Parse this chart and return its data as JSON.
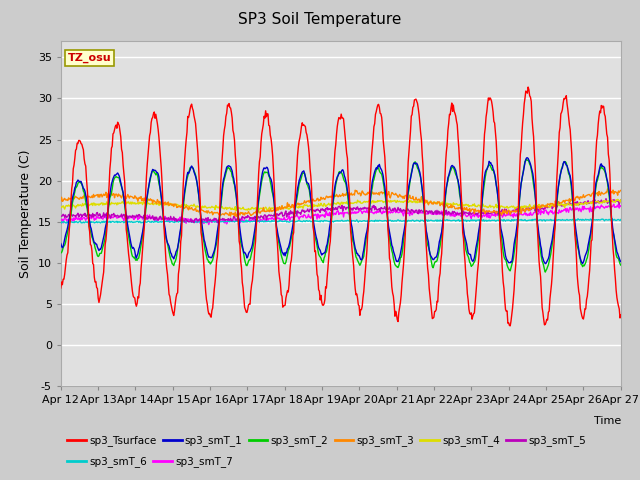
{
  "title": "SP3 Soil Temperature",
  "ylabel": "Soil Temperature (C)",
  "xlabel": "Time",
  "tz_label": "TZ_osu",
  "ylim": [
    -5,
    37
  ],
  "yticks": [
    -5,
    0,
    5,
    10,
    15,
    20,
    25,
    30,
    35
  ],
  "xtick_labels": [
    "Apr 12",
    "Apr 13",
    "Apr 14",
    "Apr 15",
    "Apr 16",
    "Apr 17",
    "Apr 18",
    "Apr 19",
    "Apr 20",
    "Apr 21",
    "Apr 22",
    "Apr 23",
    "Apr 24",
    "Apr 25",
    "Apr 26",
    "Apr 27"
  ],
  "fig_bg_color": "#cccccc",
  "plot_bg_color": "#e0e0e0",
  "grid_color": "#ffffff",
  "legend_entries": [
    {
      "label": "sp3_Tsurface",
      "color": "#ff0000"
    },
    {
      "label": "sp3_smT_1",
      "color": "#0000cc"
    },
    {
      "label": "sp3_smT_2",
      "color": "#00cc00"
    },
    {
      "label": "sp3_smT_3",
      "color": "#ff8800"
    },
    {
      "label": "sp3_smT_4",
      "color": "#dddd00"
    },
    {
      "label": "sp3_smT_5",
      "color": "#bb00bb"
    },
    {
      "label": "sp3_smT_6",
      "color": "#00cccc"
    },
    {
      "label": "sp3_smT_7",
      "color": "#ff00ff"
    }
  ]
}
